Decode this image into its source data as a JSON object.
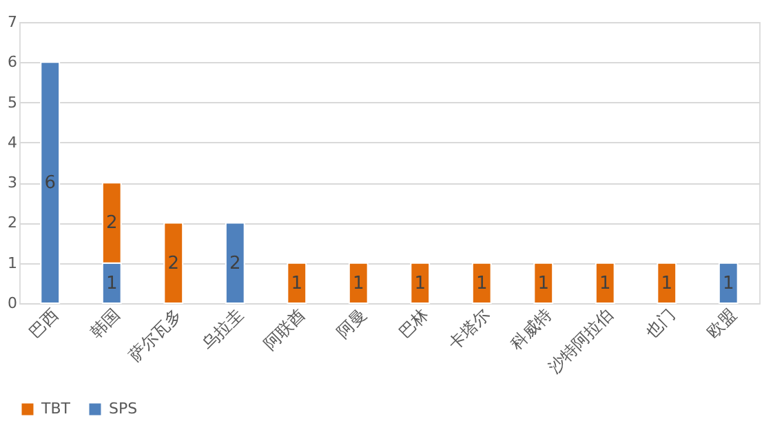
{
  "chart_data": {
    "type": "bar",
    "stacked": true,
    "categories": [
      "巴西",
      "韩国",
      "萨尔瓦多",
      "乌拉圭",
      "阿联酋",
      "阿曼",
      "巴林",
      "卡塔尔",
      "科威特",
      "沙特阿拉伯",
      "也门",
      "欧盟"
    ],
    "series": [
      {
        "name": "SPS",
        "color": "#4f81bd",
        "values": [
          6,
          1,
          null,
          2,
          null,
          null,
          null,
          null,
          null,
          null,
          null,
          1
        ]
      },
      {
        "name": "TBT",
        "color": "#e36c09",
        "values": [
          null,
          2,
          2,
          null,
          1,
          1,
          1,
          1,
          1,
          1,
          1,
          null
        ]
      }
    ],
    "ylim": [
      0,
      7
    ],
    "yticks": [
      0,
      1,
      2,
      3,
      4,
      5,
      6,
      7
    ],
    "grid": "y",
    "legend": "bottom",
    "data_labels": true
  }
}
